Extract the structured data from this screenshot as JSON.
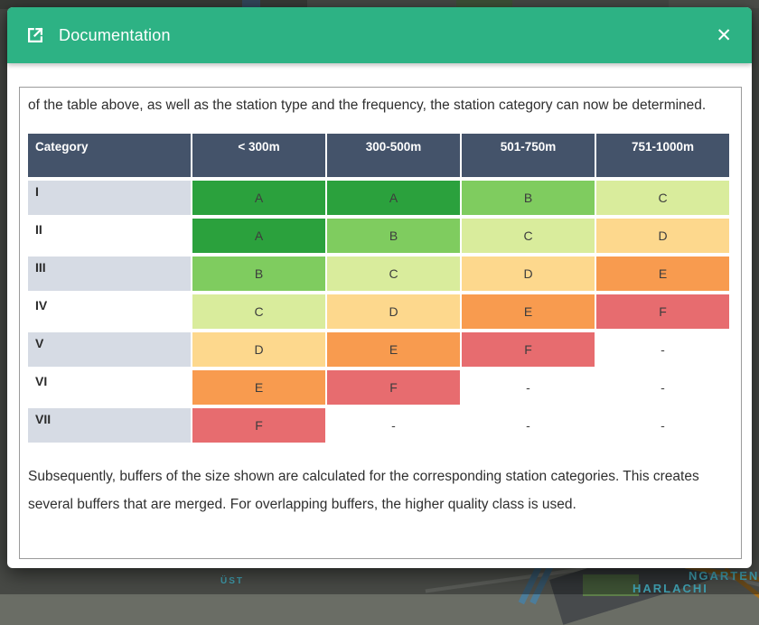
{
  "modal": {
    "title": "Documentation",
    "close_glyph": "✕",
    "header_color": "#2db284"
  },
  "document": {
    "intro_text": "of the table above, as well as the station type and the frequency, the station category can now be determined.",
    "outro_text": "Subsequently, buffers of the size shown are calculated for the corresponding station categories. This creates several buffers that are merged. For overlapping buffers, the higher quality class is used.",
    "table": {
      "headers": [
        "Category",
        "< 300m",
        "300-500m",
        "501-750m",
        "751-1000m"
      ],
      "rows": [
        {
          "category": "I",
          "values": [
            "A",
            "A",
            "B",
            "C"
          ]
        },
        {
          "category": "II",
          "values": [
            "A",
            "B",
            "C",
            "D"
          ]
        },
        {
          "category": "III",
          "values": [
            "B",
            "C",
            "D",
            "E"
          ]
        },
        {
          "category": "IV",
          "values": [
            "C",
            "D",
            "E",
            "F"
          ]
        },
        {
          "category": "V",
          "values": [
            "D",
            "E",
            "F",
            "-"
          ]
        },
        {
          "category": "VI",
          "values": [
            "E",
            "F",
            "-",
            "-"
          ]
        },
        {
          "category": "VII",
          "values": [
            "F",
            "-",
            "-",
            "-"
          ]
        }
      ],
      "grade_colors": {
        "A": "#2ba13d",
        "B": "#7fcc5f",
        "C": "#d9ec9c",
        "D": "#fdd88d",
        "E": "#f89b4f",
        "F": "#e76c6f",
        "-": "none"
      },
      "header_bg": "#44536a",
      "alt_row_bg": "#d6dbe4"
    }
  },
  "background": {
    "labels": [
      "HARLACHI",
      "NGARTEN",
      "ÜST"
    ]
  }
}
